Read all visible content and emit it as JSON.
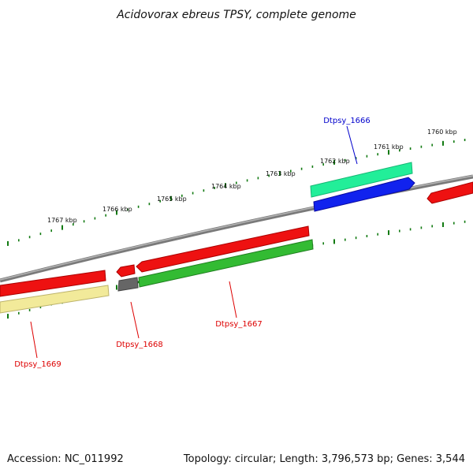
{
  "title": "Acidovorax ebreus TPSY, complete genome",
  "footer": {
    "accession": "Accession: NC_011992",
    "summary": "Topology: circular; Length: 3,796,573 bp; Genes: 3,544"
  },
  "colors": {
    "backbone": "#7a7a7a",
    "tick": "#117a11",
    "red": "#ee1111",
    "green": "#33bb33",
    "yellow": "#f2ea9a",
    "gray": "#666666",
    "teal": "#22ee99",
    "blue": "#1122ee",
    "label_red": "#dd0000",
    "label_blue": "#0000cc"
  },
  "scale_labels": [
    "1760 kbp",
    "1761 kbp",
    "1762 kbp",
    "1763 kbp",
    "1764 kbp",
    "1765 kbp",
    "1766 kbp",
    "1767 kbp"
  ],
  "genes": [
    {
      "label": "Dtpsy_1666",
      "label_color": "blue"
    },
    {
      "label": "Dtpsy_1667",
      "label_color": "red"
    },
    {
      "label": "Dtpsy_1668",
      "label_color": "red"
    },
    {
      "label": "Dtpsy_1669",
      "label_color": "red"
    }
  ]
}
